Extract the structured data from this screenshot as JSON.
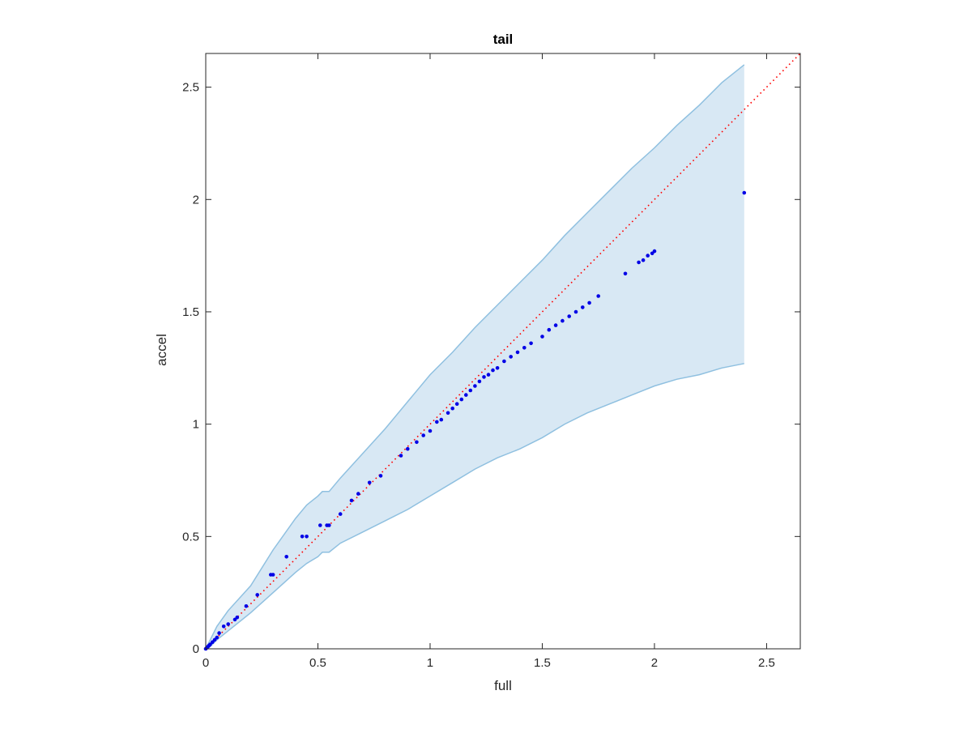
{
  "chart_data": {
    "type": "scatter",
    "title": "tail",
    "xlabel": "full",
    "ylabel": "accel",
    "xlim": [
      0,
      2.65
    ],
    "ylim": [
      0,
      2.65
    ],
    "xticks": [
      0,
      0.5,
      1,
      1.5,
      2,
      2.5
    ],
    "yticks": [
      0,
      0.5,
      1,
      1.5,
      2,
      2.5
    ],
    "xtick_labels": [
      "0",
      "0.5",
      "1",
      "1.5",
      "2",
      "2.5"
    ],
    "ytick_labels": [
      "0",
      "0.5",
      "1",
      "1.5",
      "2",
      "2.5"
    ],
    "grid": false,
    "colors": {
      "points": "#0000e6",
      "reference_line": "#ff0000",
      "band_fill": "#d8e8f4",
      "band_edge": "#8fc0e0",
      "axes": "#262626"
    },
    "reference_line": {
      "x": [
        0,
        2.65
      ],
      "y": [
        0,
        2.65
      ],
      "style": "dotted"
    },
    "band": {
      "upper": [
        [
          0,
          0.0
        ],
        [
          0.02,
          0.04
        ],
        [
          0.05,
          0.1
        ],
        [
          0.1,
          0.17
        ],
        [
          0.2,
          0.28
        ],
        [
          0.3,
          0.44
        ],
        [
          0.4,
          0.58
        ],
        [
          0.45,
          0.64
        ],
        [
          0.5,
          0.68
        ],
        [
          0.52,
          0.7
        ],
        [
          0.55,
          0.7
        ],
        [
          0.6,
          0.76
        ],
        [
          0.7,
          0.87
        ],
        [
          0.8,
          0.98
        ],
        [
          0.9,
          1.1
        ],
        [
          1.0,
          1.22
        ],
        [
          1.1,
          1.32
        ],
        [
          1.2,
          1.43
        ],
        [
          1.3,
          1.53
        ],
        [
          1.4,
          1.63
        ],
        [
          1.5,
          1.73
        ],
        [
          1.6,
          1.84
        ],
        [
          1.7,
          1.94
        ],
        [
          1.8,
          2.04
        ],
        [
          1.9,
          2.14
        ],
        [
          2.0,
          2.23
        ],
        [
          2.1,
          2.33
        ],
        [
          2.2,
          2.42
        ],
        [
          2.3,
          2.52
        ],
        [
          2.4,
          2.6
        ],
        [
          2.4,
          2.65
        ]
      ],
      "lower": [
        [
          0,
          0.0
        ],
        [
          0.02,
          0.01
        ],
        [
          0.05,
          0.04
        ],
        [
          0.1,
          0.08
        ],
        [
          0.2,
          0.16
        ],
        [
          0.3,
          0.25
        ],
        [
          0.4,
          0.34
        ],
        [
          0.45,
          0.38
        ],
        [
          0.5,
          0.41
        ],
        [
          0.52,
          0.43
        ],
        [
          0.55,
          0.43
        ],
        [
          0.6,
          0.47
        ],
        [
          0.7,
          0.52
        ],
        [
          0.8,
          0.57
        ],
        [
          0.9,
          0.62
        ],
        [
          1.0,
          0.68
        ],
        [
          1.1,
          0.74
        ],
        [
          1.2,
          0.8
        ],
        [
          1.3,
          0.85
        ],
        [
          1.4,
          0.89
        ],
        [
          1.5,
          0.94
        ],
        [
          1.6,
          1.0
        ],
        [
          1.7,
          1.05
        ],
        [
          1.8,
          1.09
        ],
        [
          1.9,
          1.13
        ],
        [
          2.0,
          1.17
        ],
        [
          2.1,
          1.2
        ],
        [
          2.2,
          1.22
        ],
        [
          2.3,
          1.25
        ],
        [
          2.4,
          1.27
        ]
      ]
    },
    "points": {
      "x": [
        0.0,
        0.005,
        0.01,
        0.015,
        0.02,
        0.03,
        0.04,
        0.05,
        0.06,
        0.08,
        0.1,
        0.13,
        0.14,
        0.18,
        0.23,
        0.29,
        0.3,
        0.36,
        0.43,
        0.45,
        0.51,
        0.54,
        0.55,
        0.6,
        0.65,
        0.68,
        0.73,
        0.78,
        0.87,
        0.9,
        0.94,
        0.97,
        1.0,
        1.03,
        1.05,
        1.08,
        1.1,
        1.12,
        1.14,
        1.16,
        1.18,
        1.2,
        1.22,
        1.24,
        1.26,
        1.28,
        1.3,
        1.33,
        1.36,
        1.39,
        1.42,
        1.45,
        1.5,
        1.53,
        1.56,
        1.59,
        1.62,
        1.65,
        1.68,
        1.71,
        1.75,
        1.87,
        1.93,
        1.95,
        1.97,
        1.99,
        2.0,
        2.4
      ],
      "y": [
        0.0,
        0.005,
        0.01,
        0.015,
        0.02,
        0.03,
        0.04,
        0.05,
        0.07,
        0.1,
        0.11,
        0.13,
        0.14,
        0.19,
        0.24,
        0.33,
        0.33,
        0.41,
        0.5,
        0.5,
        0.55,
        0.55,
        0.55,
        0.6,
        0.66,
        0.69,
        0.74,
        0.77,
        0.86,
        0.89,
        0.92,
        0.95,
        0.97,
        1.01,
        1.02,
        1.05,
        1.07,
        1.09,
        1.11,
        1.13,
        1.15,
        1.17,
        1.19,
        1.21,
        1.22,
        1.24,
        1.25,
        1.28,
        1.3,
        1.32,
        1.34,
        1.36,
        1.39,
        1.42,
        1.44,
        1.46,
        1.48,
        1.5,
        1.52,
        1.54,
        1.57,
        1.67,
        1.72,
        1.73,
        1.75,
        1.76,
        1.77,
        2.03
      ]
    }
  }
}
